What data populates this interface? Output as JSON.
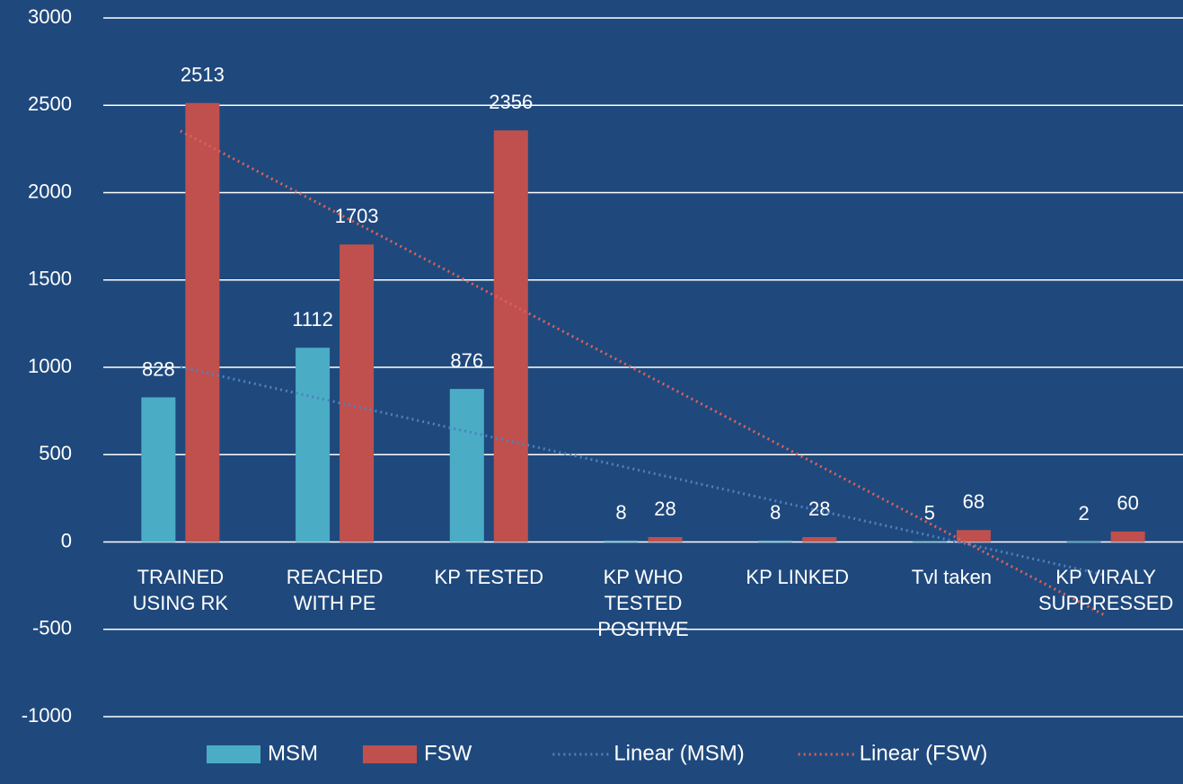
{
  "chart_data": {
    "type": "bar",
    "categories": [
      "TRAINED USING RK",
      "REACHED WITH PE",
      "KP TESTED",
      "KP WHO TESTED POSITIVE",
      "KP LINKED",
      "Tvl taken",
      "KP VIRALY SUPPRESSED"
    ],
    "series": [
      {
        "name": "MSM",
        "color": "#4bacc6",
        "values": [
          828,
          1112,
          876,
          8,
          8,
          5,
          2
        ],
        "trendline": {
          "name": "Linear (MSM)",
          "color": "#4f81bd"
        }
      },
      {
        "name": "FSW",
        "color": "#c0504d",
        "values": [
          2513,
          1703,
          2356,
          28,
          28,
          68,
          60
        ],
        "trendline": {
          "name": "Linear (FSW)",
          "color": "#e0605a"
        }
      }
    ],
    "ylim": [
      -1000,
      3000
    ],
    "yticks": [
      -1000,
      -500,
      0,
      500,
      1000,
      1500,
      2000,
      2500,
      3000
    ],
    "grid": true,
    "legend": "bottom"
  }
}
